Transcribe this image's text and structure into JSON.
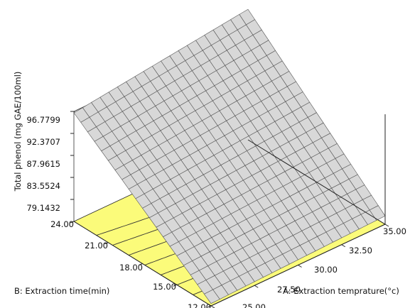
{
  "chart_data": {
    "type": "surface3d",
    "zlabel": "Total phenol (mg GAE/100ml)",
    "xlabel": "A: Extraction temprature(°c)",
    "ylabel": "B: Extraction time(min)",
    "x_ticks": [
      "25.00",
      "27.50",
      "30.00",
      "32.50",
      "35.00"
    ],
    "y_ticks": [
      "12.00",
      "15.00",
      "18.00",
      "21.00",
      "24.00"
    ],
    "z_ticks": [
      "79.1432",
      "83.5524",
      "87.9615",
      "92.3707",
      "96.7799"
    ],
    "xlim": [
      25,
      35
    ],
    "ylim": [
      12,
      24
    ],
    "zlim": [
      74.734,
      96.7799
    ],
    "surface_corners": [
      {
        "x": 25,
        "y": 12,
        "z": 75.2
      },
      {
        "x": 25,
        "y": 24,
        "z": 96.5
      },
      {
        "x": 35,
        "y": 24,
        "z": 100.9
      },
      {
        "x": 35,
        "y": 12,
        "z": 76.4
      }
    ],
    "surface_color": "#d8d8d8",
    "floor_color": "#fbfb7a"
  }
}
